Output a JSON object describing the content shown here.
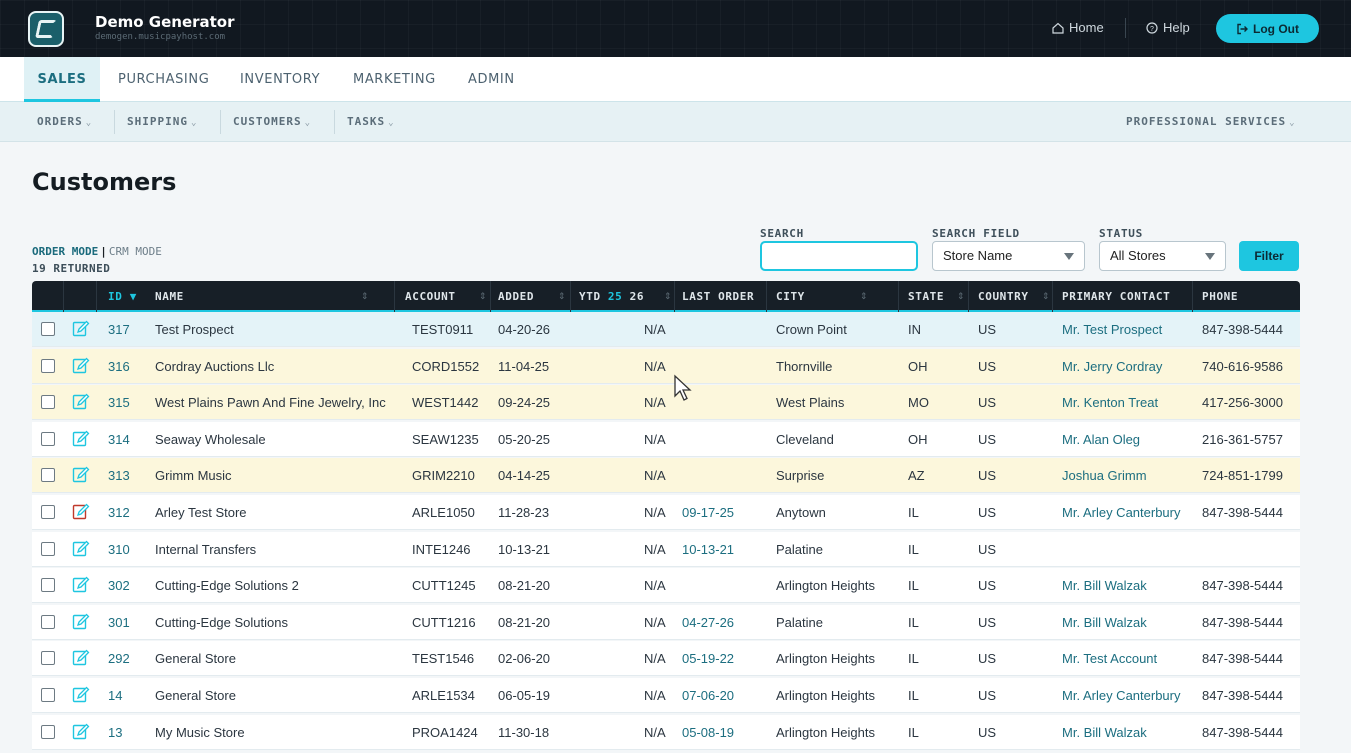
{
  "app": {
    "title": "Demo Generator",
    "subtitle": "demogen.musicpayhost.com",
    "home": "Home",
    "help": "Help",
    "logout": "Log Out"
  },
  "main_tabs": [
    "SALES",
    "PURCHASING",
    "INVENTORY",
    "MARKETING",
    "ADMIN"
  ],
  "sub_nav": [
    "ORDERS",
    "SHIPPING",
    "CUSTOMERS",
    "TASKS"
  ],
  "sub_nav_right": "PROFESSIONAL SERVICES",
  "page": {
    "title": "Customers",
    "order_mode": "ORDER MODE",
    "crm_mode": "CRM MODE",
    "returned": "19 RETURNED"
  },
  "filters": {
    "search_label": "SEARCH",
    "search_value": "",
    "field_label": "SEARCH FIELD",
    "field_value": "Store Name",
    "status_label": "STATUS",
    "status_value": "All Stores",
    "filter_button": "Filter"
  },
  "columns": {
    "id": "ID",
    "name": "NAME",
    "account": "ACCOUNT",
    "added": "ADDED",
    "ytd": "YTD",
    "ytd_a": "25",
    "ytd_b": "26",
    "last_order": "LAST ORDER",
    "city": "CITY",
    "state": "STATE",
    "country": "COUNTRY",
    "contact": "PRIMARY CONTACT",
    "phone": "PHONE"
  },
  "colors": {
    "accent": "#1ec6e0",
    "header_bg": "#111820",
    "highlight_row": "#fcf7dc"
  },
  "rows": [
    {
      "id": "317",
      "name": "Test Prospect",
      "account": "TEST0911",
      "added": "04-20-26",
      "ytd": "N/A",
      "last": "",
      "city": "Crown Point",
      "state": "IN",
      "country": "US",
      "contact": "Mr. Test Prospect",
      "phone": "847-398-5444"
    },
    {
      "id": "316",
      "name": "Cordray Auctions Llc",
      "account": "CORD1552",
      "added": "11-04-25",
      "ytd": "N/A",
      "last": "",
      "city": "Thornville",
      "state": "OH",
      "country": "US",
      "contact": "Mr. Jerry Cordray",
      "phone": "740-616-9586"
    },
    {
      "id": "315",
      "name": "West Plains Pawn And Fine Jewelry, Inc",
      "account": "WEST1442",
      "added": "09-24-25",
      "ytd": "N/A",
      "last": "",
      "city": "West Plains",
      "state": "MO",
      "country": "US",
      "contact": "Mr. Kenton Treat",
      "phone": "417-256-3000"
    },
    {
      "id": "314",
      "name": "Seaway Wholesale",
      "account": "SEAW1235",
      "added": "05-20-25",
      "ytd": "N/A",
      "last": "",
      "city": "Cleveland",
      "state": "OH",
      "country": "US",
      "contact": "Mr. Alan Oleg",
      "phone": "216-361-5757"
    },
    {
      "id": "313",
      "name": "Grimm Music",
      "account": "GRIM2210",
      "added": "04-14-25",
      "ytd": "N/A",
      "last": "",
      "city": "Surprise",
      "state": "AZ",
      "country": "US",
      "contact": "Joshua Grimm",
      "phone": "724-851-1799"
    },
    {
      "id": "312",
      "name": "Arley Test Store",
      "account": "ARLE1050",
      "added": "11-28-23",
      "ytd": "N/A",
      "last": "09-17-25",
      "city": "Anytown",
      "state": "IL",
      "country": "US",
      "contact": "Mr. Arley Canterbury",
      "phone": "847-398-5444"
    },
    {
      "id": "310",
      "name": "Internal Transfers",
      "account": "INTE1246",
      "added": "10-13-21",
      "ytd": "N/A",
      "last": "10-13-21",
      "city": "Palatine",
      "state": "IL",
      "country": "US",
      "contact": "",
      "phone": ""
    },
    {
      "id": "302",
      "name": "Cutting-Edge Solutions 2",
      "account": "CUTT1245",
      "added": "08-21-20",
      "ytd": "N/A",
      "last": "",
      "city": "Arlington Heights",
      "state": "IL",
      "country": "US",
      "contact": "Mr. Bill Walzak",
      "phone": "847-398-5444"
    },
    {
      "id": "301",
      "name": "Cutting-Edge Solutions",
      "account": "CUTT1216",
      "added": "08-21-20",
      "ytd": "N/A",
      "last": "04-27-26",
      "city": "Palatine",
      "state": "IL",
      "country": "US",
      "contact": "Mr. Bill Walzak",
      "phone": "847-398-5444"
    },
    {
      "id": "292",
      "name": "General Store",
      "account": "TEST1546",
      "added": "02-06-20",
      "ytd": "N/A",
      "last": "05-19-22",
      "city": "Arlington Heights",
      "state": "IL",
      "country": "US",
      "contact": "Mr. Test Account",
      "phone": "847-398-5444"
    },
    {
      "id": "14",
      "name": "General Store",
      "account": "ARLE1534",
      "added": "06-05-19",
      "ytd": "N/A",
      "last": "07-06-20",
      "city": "Arlington Heights",
      "state": "IL",
      "country": "US",
      "contact": "Mr. Arley Canterbury",
      "phone": "847-398-5444"
    },
    {
      "id": "13",
      "name": "My Music Store",
      "account": "PROA1424",
      "added": "11-30-18",
      "ytd": "N/A",
      "last": "05-08-19",
      "city": "Arlington Heights",
      "state": "IL",
      "country": "US",
      "contact": "Mr. Bill Walzak",
      "phone": "847-398-5444"
    }
  ]
}
